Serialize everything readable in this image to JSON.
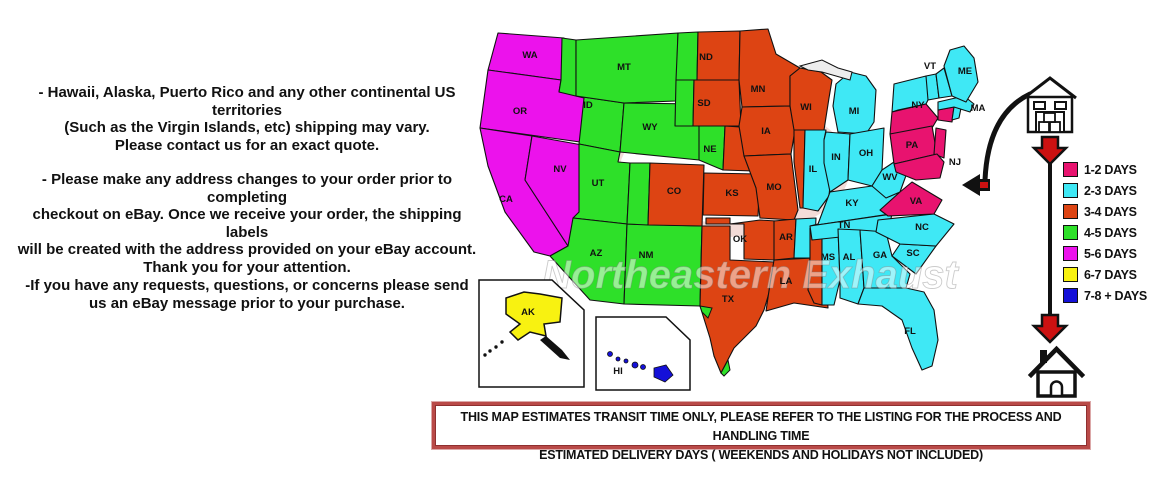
{
  "notes": {
    "para1": "- Hawaii, Alaska, Puerto Rico and any other continental US territories\n(Such as the Virgin Islands, etc) shipping may vary.\nPlease contact us for an exact quote.",
    "para2": "- Please make any address changes to your order prior to completing\ncheckout on eBay. Once we receive your order, the shipping labels\nwill be created with the address provided on your eBay account.\nThank you for your attention.",
    "para3": "-If you have any requests, questions, or concerns please send\nus an eBay message prior to your purchase."
  },
  "zone_colors": {
    "1-2": "#e8136f",
    "2-3": "#3fe8f5",
    "3-4": "#dd4413",
    "4-5": "#2ee029",
    "5-6": "#ec12ec",
    "6-7": "#f8f211",
    "7-8+": "#1410d8"
  },
  "legend": {
    "items": [
      {
        "label": "1-2 DAYS",
        "zone": "1-2",
        "color": "#e8136f"
      },
      {
        "label": "2-3 DAYS",
        "zone": "2-3",
        "color": "#3fe8f5"
      },
      {
        "label": "3-4 DAYS",
        "zone": "3-4",
        "color": "#dd4413"
      },
      {
        "label": "4-5 DAYS",
        "zone": "4-5",
        "color": "#2ee029"
      },
      {
        "label": "5-6 DAYS",
        "zone": "5-6",
        "color": "#ec12ec"
      },
      {
        "label": "6-7 DAYS",
        "zone": "6-7",
        "color": "#f8f211"
      },
      {
        "label": "7-8 + DAYS",
        "zone": "7-8+",
        "color": "#1410d8"
      }
    ]
  },
  "map": {
    "watermark": "Northeastern Exhaust",
    "states": [
      {
        "id": "WA",
        "label": "WA",
        "zone": "5-6"
      },
      {
        "id": "OR",
        "label": "OR",
        "zone": "5-6"
      },
      {
        "id": "CA",
        "label": "CA",
        "zone": "5-6"
      },
      {
        "id": "NV",
        "label": "NV",
        "zone": "5-6"
      },
      {
        "id": "ID",
        "label": "ID",
        "zone": "4-5"
      },
      {
        "id": "MT",
        "label": "MT",
        "zone": "4-5"
      },
      {
        "id": "WY",
        "label": "WY",
        "zone": "4-5"
      },
      {
        "id": "UT",
        "label": "UT",
        "zone": "4-5"
      },
      {
        "id": "AZ",
        "label": "AZ",
        "zone": "4-5"
      },
      {
        "id": "NM",
        "label": "NM",
        "zone": "4-5"
      },
      {
        "id": "CO",
        "label": "CO",
        "zones": {
          "west": "4-5",
          "east": "3-4"
        }
      },
      {
        "id": "ND",
        "label": "ND",
        "zones": {
          "west": "4-5",
          "east": "3-4"
        }
      },
      {
        "id": "SD",
        "label": "SD",
        "zones": {
          "west": "4-5",
          "east": "3-4"
        }
      },
      {
        "id": "NE",
        "label": "NE",
        "zones": {
          "west": "4-5",
          "east": "3-4"
        }
      },
      {
        "id": "MN",
        "label": "MN",
        "zone": "3-4"
      },
      {
        "id": "IA",
        "label": "IA",
        "zone": "3-4"
      },
      {
        "id": "WI",
        "label": "WI",
        "zone": "3-4"
      },
      {
        "id": "KS",
        "label": "KS",
        "zone": "3-4"
      },
      {
        "id": "OK",
        "label": "OK",
        "zone": "3-4"
      },
      {
        "id": "MO",
        "label": "MO",
        "zone": "3-4"
      },
      {
        "id": "TX",
        "label": "TX",
        "zone": "3-4"
      },
      {
        "id": "LA",
        "label": "LA",
        "zone": "3-4"
      },
      {
        "id": "AR",
        "label": "AR",
        "zones": {
          "west": "3-4",
          "east": "2-3"
        }
      },
      {
        "id": "IL",
        "label": "IL",
        "zones": {
          "west": "3-4",
          "east": "2-3"
        }
      },
      {
        "id": "MS",
        "label": "MS",
        "zones": {
          "west": "3-4",
          "east": "2-3"
        }
      },
      {
        "id": "MI",
        "label": "MI",
        "zone": "2-3"
      },
      {
        "id": "IN",
        "label": "IN",
        "zone": "2-3"
      },
      {
        "id": "OH",
        "label": "OH",
        "zone": "2-3"
      },
      {
        "id": "KY",
        "label": "KY",
        "zone": "2-3"
      },
      {
        "id": "TN",
        "label": "TN",
        "zone": "2-3"
      },
      {
        "id": "AL",
        "label": "AL",
        "zone": "2-3"
      },
      {
        "id": "GA",
        "label": "GA",
        "zone": "2-3"
      },
      {
        "id": "FL",
        "label": "FL",
        "zone": "2-3"
      },
      {
        "id": "SC",
        "label": "SC",
        "zone": "2-3"
      },
      {
        "id": "NC",
        "label": "NC",
        "zone": "2-3"
      },
      {
        "id": "WV",
        "label": "WV",
        "zone": "2-3"
      },
      {
        "id": "VA",
        "label": "VA",
        "zone": "1-2"
      },
      {
        "id": "NY",
        "label": "NY",
        "zones": {
          "north": "2-3",
          "south": "1-2"
        }
      },
      {
        "id": "PA",
        "label": "PA",
        "zone": "1-2"
      },
      {
        "id": "NJ",
        "label": "NJ",
        "zone": "1-2"
      },
      {
        "id": "MD",
        "label": "",
        "zone": "1-2"
      },
      {
        "id": "CT",
        "label": "",
        "zone": "1-2"
      },
      {
        "id": "RI",
        "label": "",
        "zone": "2-3"
      },
      {
        "id": "MA",
        "label": "MA",
        "zone": "2-3"
      },
      {
        "id": "VT",
        "label": "VT",
        "zone": "2-3"
      },
      {
        "id": "NH",
        "label": "",
        "zone": "2-3"
      },
      {
        "id": "ME",
        "label": "ME",
        "zone": "2-3"
      }
    ],
    "insets": [
      {
        "id": "AK",
        "label": "AK",
        "zone": "6-7"
      },
      {
        "id": "HI",
        "label": "HI",
        "zone": "7-8+"
      }
    ]
  },
  "icons": {
    "origin": "warehouse-icon",
    "transit": "red-down-arrow-icon",
    "destination": "house-icon",
    "map_pointer": "left-arrow-icon"
  },
  "banner": {
    "line1": "THIS MAP ESTIMATES TRANSIT TIME ONLY, PLEASE REFER TO THE LISTING FOR THE PROCESS AND HANDLING TIME",
    "line2": "ESTIMATED DELIVERY DAYS ( WEEKENDS AND HOLIDAYS NOT INCLUDED)"
  }
}
